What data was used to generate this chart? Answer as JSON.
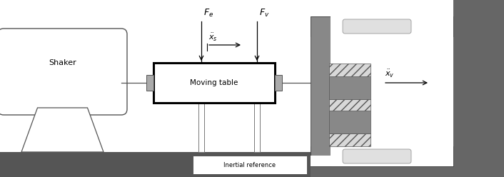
{
  "fig_width": 7.06,
  "fig_height": 2.48,
  "dpi": 100,
  "bg_color": "#ffffff",
  "shaker_label": "Shaker",
  "moving_table_label": "Moving table",
  "inertial_ref_label": "Inertial reference",
  "Fe_label": "$F_e$",
  "Fv_label": "$F_v$",
  "xs_label": "$\\ddot{x}_s$",
  "xv_label": "$\\ddot{x}_v$",
  "floor_hatch_color": "#444444",
  "floor_hatch_face": "#555555",
  "wall_face": "#888888",
  "enc_outer_face": "#999999",
  "bar_face": "#888888",
  "center_block_face": "#888888",
  "hatch_piece_face": "#e0e0e0",
  "slot_face": "#e8e8e8"
}
